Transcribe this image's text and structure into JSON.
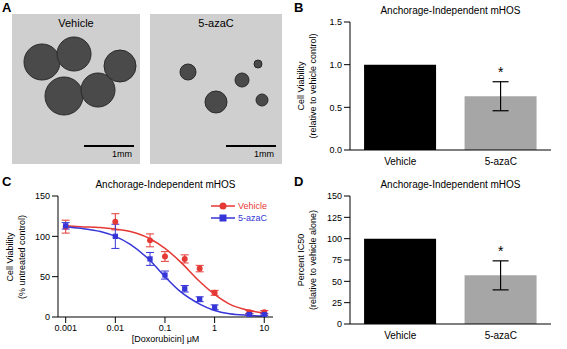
{
  "image_panel": {
    "panel": "A",
    "images": [
      {
        "label": "Vehicle",
        "scale_bar": "1mm"
      },
      {
        "label": "5-azaC",
        "scale_bar": "1mm"
      }
    ]
  },
  "chart_data": [
    {
      "panel": "B",
      "type": "bar",
      "title": "Anchorage-Independent mHOS",
      "y_label": [
        "Cell Viability",
        "(relative to vehicle control)"
      ],
      "categories": [
        "Vehicle",
        "5-azaC"
      ],
      "values": [
        1.0,
        0.63
      ],
      "errors": [
        0,
        0.17
      ],
      "colors": [
        "#000000",
        "#a6a6a6"
      ],
      "ylim": [
        0,
        1.5
      ],
      "yticks": [
        {
          "value": 0,
          "label": "0.0"
        },
        {
          "value": 0.5,
          "label": "0.5"
        },
        {
          "value": 1,
          "label": "1.0"
        },
        {
          "value": 1.5,
          "label": "1.5"
        }
      ],
      "grid": false,
      "annotations": [
        {
          "text": "*",
          "category": "5-azaC"
        }
      ]
    },
    {
      "panel": "C",
      "type": "scatter",
      "title": "Anchorage-Independent mHOS",
      "y_label": [
        "Cell Viability",
        "(% untreated control)"
      ],
      "x_label": "[Doxorubicin] μM",
      "log": "x",
      "x": [
        0.001,
        0.01,
        0.05,
        0.1,
        0.25,
        0.5,
        1,
        5,
        10
      ],
      "fit_x": [
        0.001,
        0.002,
        0.005,
        0.01,
        0.02,
        0.05,
        0.1,
        0.2,
        0.5,
        1,
        2,
        5,
        10
      ],
      "series": [
        {
          "name": "Vehicle",
          "color": "#e53935",
          "marker": "circle",
          "values": [
            112,
            118,
            95,
            75,
            72,
            60,
            30,
            6,
            6
          ],
          "errors": [
            8,
            10,
            8,
            6,
            5,
            4,
            3,
            2,
            2
          ],
          "fit_values": [
            113,
            112,
            111,
            109,
            106,
            97,
            85,
            69,
            44,
            28,
            16,
            8,
            5
          ]
        },
        {
          "name": "5-azaC",
          "color": "#3535d8",
          "marker": "square",
          "values": [
            113,
            100,
            72,
            52,
            35,
            22,
            12,
            3,
            3
          ],
          "errors": [
            4,
            15,
            8,
            5,
            4,
            3,
            3,
            1,
            1
          ],
          "fit_values": [
            112,
            110,
            106,
            100,
            90,
            70,
            50,
            32,
            16,
            8,
            4,
            2,
            1
          ]
        }
      ],
      "xlim": [
        0.0007,
        15
      ],
      "xticks": [
        0.001,
        0.01,
        0.1,
        1,
        10
      ],
      "ylim": [
        0,
        150
      ],
      "yticks": [
        0,
        50,
        100,
        150
      ],
      "grid": false,
      "legend": "upper right"
    },
    {
      "panel": "D",
      "type": "bar",
      "title": "Anchorage-Independent mHOS",
      "y_label": [
        "Percent IC50",
        "(relative to vehicle alone)"
      ],
      "categories": [
        "Vehicle",
        "5-azaC"
      ],
      "values": [
        100,
        57
      ],
      "errors": [
        0,
        17
      ],
      "colors": [
        "#000000",
        "#a6a6a6"
      ],
      "ylim": [
        0,
        150
      ],
      "yticks": [
        0,
        25,
        50,
        75,
        100,
        125,
        150
      ],
      "grid": false,
      "annotations": [
        {
          "text": "*",
          "category": "5-azaC"
        }
      ]
    }
  ]
}
